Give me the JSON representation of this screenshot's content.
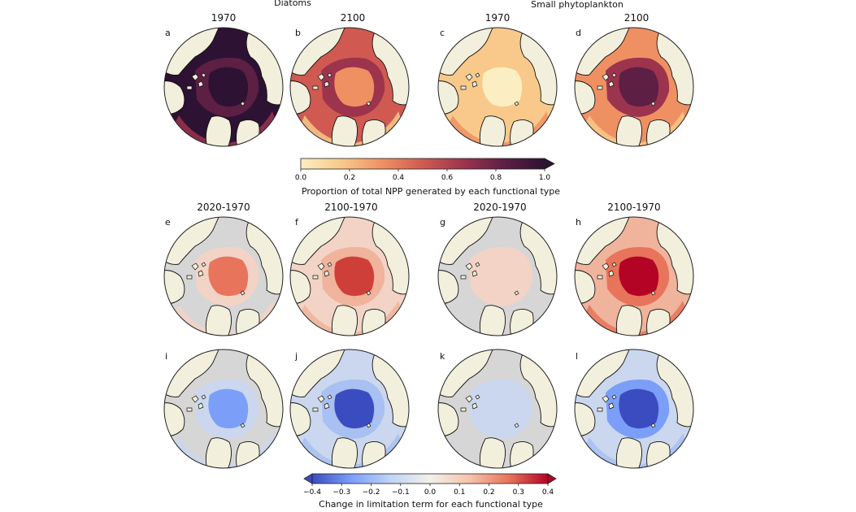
{
  "group_titles": {
    "diatoms": "Diatoms",
    "small_phyto": "Small phytoplankton"
  },
  "top_panels": [
    {
      "letter": "a",
      "title": "1970",
      "field": "proportion-high"
    },
    {
      "letter": "b",
      "title": "2100",
      "field": "proportion-mixed"
    },
    {
      "letter": "c",
      "title": "1970",
      "field": "proportion-low"
    },
    {
      "letter": "d",
      "title": "2100",
      "field": "proportion-midlow"
    }
  ],
  "proportion_colorbar": {
    "label": "Proportion of total NPP generated by each functional type",
    "ticks": [
      "0.0",
      "0.2",
      "0.4",
      "0.6",
      "0.8",
      "1.0"
    ],
    "range": [
      0.0,
      1.0
    ],
    "colormap": [
      "#fbeec3",
      "#f8c98a",
      "#ef9063",
      "#d05a52",
      "#9c344e",
      "#5e1f44",
      "#2d1233"
    ]
  },
  "diff_titles": [
    "2020-1970",
    "2100-1970",
    "2020-1970",
    "2100-1970"
  ],
  "middle_panels": [
    {
      "letter": "e",
      "field": "diff-moderate-red"
    },
    {
      "letter": "f",
      "field": "diff-strong-red"
    },
    {
      "letter": "g",
      "field": "diff-faint-red"
    },
    {
      "letter": "h",
      "field": "diff-strongest-red"
    }
  ],
  "bottom_panels": [
    {
      "letter": "i",
      "field": "diff-moderate-blue"
    },
    {
      "letter": "j",
      "field": "diff-strong-blue"
    },
    {
      "letter": "k",
      "field": "diff-faint-blue"
    },
    {
      "letter": "l",
      "field": "diff-strongest-blue"
    }
  ],
  "change_colorbar": {
    "label": "Change in limitation term for each functional type",
    "ticks": [
      "−0.4",
      "−0.3",
      "−0.2",
      "−0.1",
      "0.0",
      "0.1",
      "0.2",
      "0.3",
      "0.4"
    ],
    "range": [
      -0.4,
      0.4
    ],
    "colormap": [
      "#3b4cc0",
      "#7b9ff9",
      "#c0d4f5",
      "#f2f0eb",
      "#f5c4ac",
      "#e7745b",
      "#b40426"
    ]
  },
  "colors": {
    "land": "#f2efdc",
    "ocean_neutral": "#d6d6d6",
    "coast": "#111111"
  }
}
